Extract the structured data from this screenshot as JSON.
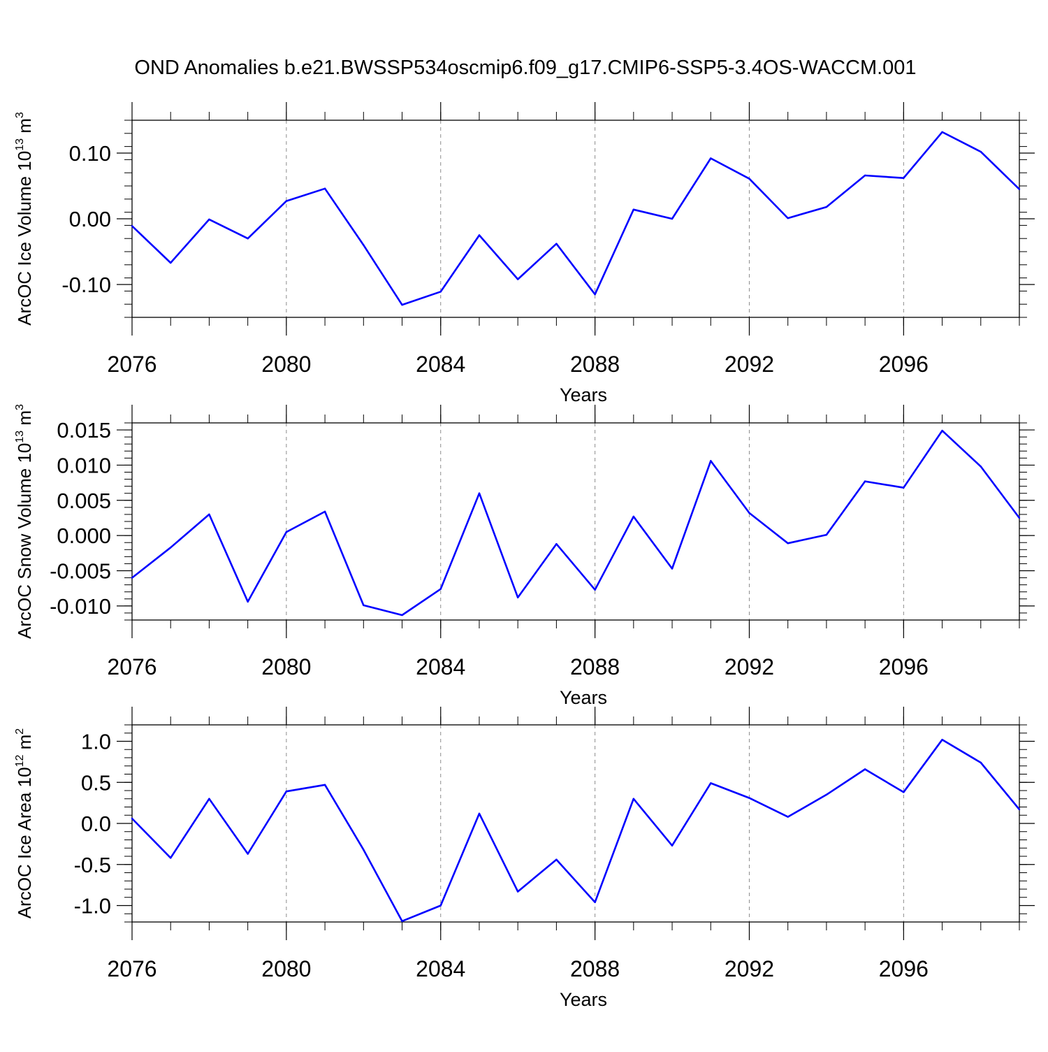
{
  "title": "OND Anomalies b.e21.BWSSP534oscmip6.f09_g17.CMIP6-SSP5-3.4OS-WACCM.001",
  "line_color": "#0000ff",
  "grid_color": "#8c8c8c",
  "chart_data": [
    {
      "type": "line",
      "title": "OND Anomalies b.e21.BWSSP534oscmip6.f09_g17.CMIP6-SSP5-3.4OS-WACCM.001",
      "ylabel_main": "ArcOC Ice Volume 10",
      "ylabel_exp": "13",
      "ylabel_unit": "m",
      "ylabel_unit_exp": "3",
      "xlabel": "Years",
      "xlim": [
        2076,
        2099
      ],
      "ylim": [
        -0.15,
        0.15
      ],
      "yticks": [
        -0.1,
        0.0,
        0.1
      ],
      "ytick_labels": [
        "-0.10",
        "0.00",
        "0.10"
      ],
      "yminor_step": 0.02,
      "xticks": [
        2076,
        2080,
        2084,
        2088,
        2092,
        2096
      ],
      "xtick_labels": [
        "2076",
        "2080",
        "2084",
        "2088",
        "2092",
        "2096"
      ],
      "grid": "vertical dashed at major x ticks",
      "x": [
        2076,
        2077,
        2078,
        2079,
        2080,
        2081,
        2082,
        2083,
        2084,
        2085,
        2086,
        2087,
        2088,
        2089,
        2090,
        2091,
        2092,
        2093,
        2094,
        2095,
        2096,
        2097,
        2098,
        2099
      ],
      "values": [
        -0.011,
        -0.067,
        -0.001,
        -0.03,
        0.027,
        0.046,
        -0.04,
        -0.131,
        -0.111,
        -0.025,
        -0.092,
        -0.038,
        -0.115,
        0.014,
        0.0,
        0.092,
        0.061,
        0.001,
        0.018,
        0.066,
        0.062,
        0.132,
        0.102,
        0.045
      ]
    },
    {
      "type": "line",
      "ylabel_main": "ArcOC Snow Volume 10",
      "ylabel_exp": "13",
      "ylabel_unit": "m",
      "ylabel_unit_exp": "3",
      "xlabel": "Years",
      "xlim": [
        2076,
        2099
      ],
      "ylim": [
        -0.012,
        0.016
      ],
      "yticks": [
        -0.01,
        -0.005,
        0.0,
        0.005,
        0.01,
        0.015
      ],
      "ytick_labels": [
        "-0.010",
        "-0.005",
        "0.000",
        "0.005",
        "0.010",
        "0.015"
      ],
      "yminor_step": 0.001,
      "xticks": [
        2076,
        2080,
        2084,
        2088,
        2092,
        2096
      ],
      "xtick_labels": [
        "2076",
        "2080",
        "2084",
        "2088",
        "2092",
        "2096"
      ],
      "grid": "vertical dashed at major x ticks",
      "x": [
        2076,
        2077,
        2078,
        2079,
        2080,
        2081,
        2082,
        2083,
        2084,
        2085,
        2086,
        2087,
        2088,
        2089,
        2090,
        2091,
        2092,
        2093,
        2094,
        2095,
        2096,
        2097,
        2098,
        2099
      ],
      "values": [
        -0.006,
        -0.0017,
        0.003,
        -0.0094,
        0.0005,
        0.0034,
        -0.0099,
        -0.0113,
        -0.0076,
        0.006,
        -0.0088,
        -0.0012,
        -0.0077,
        0.0027,
        -0.0047,
        0.0106,
        0.0032,
        -0.0011,
        0.0001,
        0.0077,
        0.0068,
        0.0149,
        0.0098,
        0.0025
      ]
    },
    {
      "type": "line",
      "ylabel_main": "ArcOC Ice Area 10",
      "ylabel_exp": "12",
      "ylabel_unit": "m",
      "ylabel_unit_exp": "2",
      "xlabel": "Years",
      "xlim": [
        2076,
        2099
      ],
      "ylim": [
        -1.2,
        1.2
      ],
      "yticks": [
        -1.0,
        -0.5,
        0.0,
        0.5,
        1.0
      ],
      "ytick_labels": [
        "-1.0",
        "-0.5",
        "0.0",
        "0.5",
        "1.0"
      ],
      "yminor_step": 0.1,
      "xticks": [
        2076,
        2080,
        2084,
        2088,
        2092,
        2096
      ],
      "xtick_labels": [
        "2076",
        "2080",
        "2084",
        "2088",
        "2092",
        "2096"
      ],
      "grid": "vertical dashed at major x ticks",
      "x": [
        2076,
        2077,
        2078,
        2079,
        2080,
        2081,
        2082,
        2083,
        2084,
        2085,
        2086,
        2087,
        2088,
        2089,
        2090,
        2091,
        2092,
        2093,
        2094,
        2095,
        2096,
        2097,
        2098,
        2099
      ],
      "values": [
        0.06,
        -0.42,
        0.3,
        -0.37,
        0.39,
        0.47,
        -0.32,
        -1.19,
        -1.0,
        0.12,
        -0.83,
        -0.44,
        -0.96,
        0.3,
        -0.27,
        0.49,
        0.31,
        0.08,
        0.35,
        0.66,
        0.38,
        1.02,
        0.74,
        0.17
      ]
    }
  ]
}
